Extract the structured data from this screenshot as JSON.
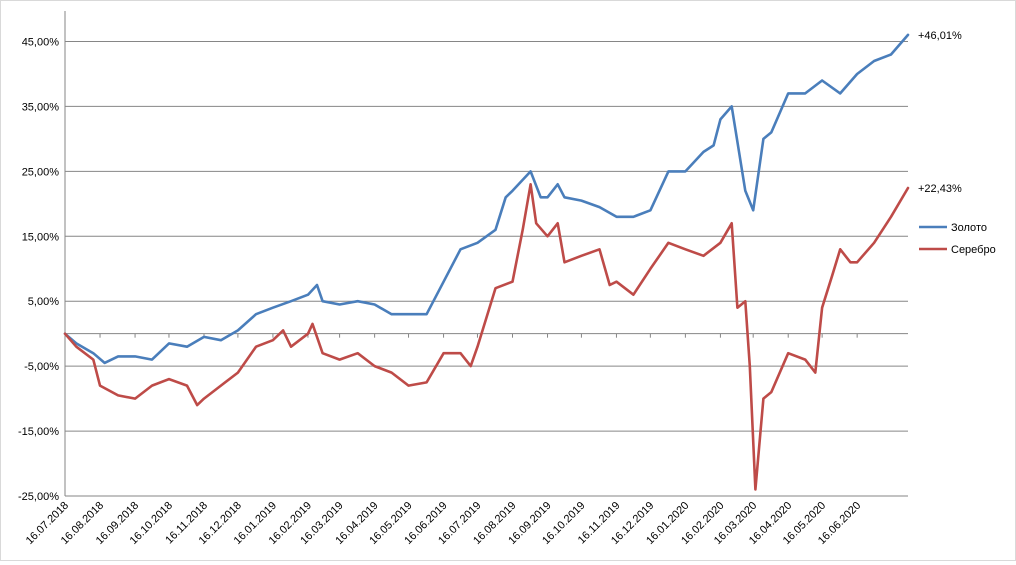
{
  "chart_data": {
    "type": "line",
    "yticks": [
      "45,00%",
      "35,00%",
      "25,00%",
      "15,00%",
      "5,00%",
      "-5,00%",
      "-15,00%",
      "-25,00%"
    ],
    "ylim": [
      -25,
      45
    ],
    "xticks": [
      "16.07.2018",
      "16.08.2018",
      "16.09.2018",
      "16.10.2018",
      "16.11.2018",
      "16.12.2018",
      "16.01.2019",
      "16.02.2019",
      "16.03.2019",
      "16.04.2019",
      "16.05.2019",
      "16.06.2019",
      "16.07.2019",
      "16.08.2019",
      "16.09.2019",
      "16.10.2019",
      "16.11.2019",
      "16.12.2019",
      "16.01.2020",
      "16.02.2020",
      "16.03.2020",
      "16.04.2020",
      "16.05.2020",
      "16.06.2020"
    ],
    "x_range": [
      "16.07.2018",
      "31.07.2020"
    ],
    "grid": "horizontal",
    "legend_position": "right",
    "series": [
      {
        "name": "Золото",
        "color": "#4a7ebb",
        "end_label": "+46,01%",
        "points": [
          [
            "16.07.2018",
            0
          ],
          [
            "26.07.2018",
            -1.5
          ],
          [
            "10.08.2018",
            -3
          ],
          [
            "20.08.2018",
            -4.5
          ],
          [
            "01.09.2018",
            -3.5
          ],
          [
            "16.09.2018",
            -3.5
          ],
          [
            "01.10.2018",
            -4
          ],
          [
            "16.10.2018",
            -1.5
          ],
          [
            "01.11.2018",
            -2
          ],
          [
            "16.11.2018",
            -0.5
          ],
          [
            "01.12.2018",
            -1
          ],
          [
            "16.12.2018",
            0.5
          ],
          [
            "01.01.2019",
            3
          ],
          [
            "16.01.2019",
            4
          ],
          [
            "01.02.2019",
            5
          ],
          [
            "16.02.2019",
            6
          ],
          [
            "24.02.2019",
            7.5
          ],
          [
            "01.03.2019",
            5
          ],
          [
            "16.03.2019",
            4.5
          ],
          [
            "01.04.2019",
            5
          ],
          [
            "16.04.2019",
            4.5
          ],
          [
            "01.05.2019",
            3
          ],
          [
            "16.05.2019",
            3
          ],
          [
            "01.06.2019",
            3
          ],
          [
            "16.06.2019",
            8
          ],
          [
            "01.07.2019",
            13
          ],
          [
            "16.07.2019",
            14
          ],
          [
            "01.08.2019",
            16
          ],
          [
            "10.08.2019",
            21
          ],
          [
            "16.08.2019",
            22
          ],
          [
            "01.09.2019",
            25
          ],
          [
            "10.09.2019",
            21
          ],
          [
            "16.09.2019",
            21
          ],
          [
            "25.09.2019",
            23
          ],
          [
            "01.10.2019",
            21
          ],
          [
            "16.10.2019",
            20.5
          ],
          [
            "01.11.2019",
            19.5
          ],
          [
            "16.11.2019",
            18
          ],
          [
            "01.12.2019",
            18
          ],
          [
            "16.12.2019",
            19
          ],
          [
            "01.01.2020",
            25
          ],
          [
            "16.01.2020",
            25
          ],
          [
            "01.02.2020",
            28
          ],
          [
            "10.02.2020",
            29
          ],
          [
            "16.02.2020",
            33
          ],
          [
            "26.02.2020",
            35
          ],
          [
            "09.03.2020",
            22
          ],
          [
            "16.03.2020",
            19
          ],
          [
            "25.03.2020",
            30
          ],
          [
            "01.04.2020",
            31
          ],
          [
            "16.04.2020",
            37
          ],
          [
            "01.05.2020",
            37
          ],
          [
            "16.05.2020",
            39
          ],
          [
            "01.06.2020",
            37
          ],
          [
            "16.06.2020",
            40
          ],
          [
            "01.07.2020",
            42
          ],
          [
            "16.07.2020",
            43
          ],
          [
            "31.07.2020",
            46.01
          ]
        ]
      },
      {
        "name": "Серебро",
        "color": "#be4b48",
        "end_label": "+22,43%",
        "points": [
          [
            "16.07.2018",
            0
          ],
          [
            "26.07.2018",
            -2
          ],
          [
            "10.08.2018",
            -4
          ],
          [
            "16.08.2018",
            -8
          ],
          [
            "01.09.2018",
            -9.5
          ],
          [
            "16.09.2018",
            -10
          ],
          [
            "01.10.2018",
            -8
          ],
          [
            "16.10.2018",
            -7
          ],
          [
            "01.11.2018",
            -8
          ],
          [
            "10.11.2018",
            -11
          ],
          [
            "16.11.2018",
            -10
          ],
          [
            "01.12.2018",
            -8
          ],
          [
            "16.12.2018",
            -6
          ],
          [
            "01.01.2019",
            -2
          ],
          [
            "16.01.2019",
            -1
          ],
          [
            "25.01.2019",
            0.5
          ],
          [
            "01.02.2019",
            -2
          ],
          [
            "16.02.2019",
            0
          ],
          [
            "20.02.2019",
            1.5
          ],
          [
            "01.03.2019",
            -3
          ],
          [
            "16.03.2019",
            -4
          ],
          [
            "01.04.2019",
            -3
          ],
          [
            "16.04.2019",
            -5
          ],
          [
            "01.05.2019",
            -6
          ],
          [
            "16.05.2019",
            -8
          ],
          [
            "01.06.2019",
            -7.5
          ],
          [
            "16.06.2019",
            -3
          ],
          [
            "01.07.2019",
            -3
          ],
          [
            "10.07.2019",
            -5
          ],
          [
            "16.07.2019",
            -2
          ],
          [
            "01.08.2019",
            7
          ],
          [
            "16.08.2019",
            8
          ],
          [
            "25.08.2019",
            16
          ],
          [
            "01.09.2019",
            23
          ],
          [
            "06.09.2019",
            17
          ],
          [
            "16.09.2019",
            15
          ],
          [
            "25.09.2019",
            17
          ],
          [
            "01.10.2019",
            11
          ],
          [
            "16.10.2019",
            12
          ],
          [
            "01.11.2019",
            13
          ],
          [
            "10.11.2019",
            7.5
          ],
          [
            "16.11.2019",
            8
          ],
          [
            "01.12.2019",
            6
          ],
          [
            "16.12.2019",
            10
          ],
          [
            "01.01.2020",
            14
          ],
          [
            "16.01.2020",
            13
          ],
          [
            "01.02.2020",
            12
          ],
          [
            "16.02.2020",
            14
          ],
          [
            "26.02.2020",
            17
          ],
          [
            "02.03.2020",
            4
          ],
          [
            "09.03.2020",
            5
          ],
          [
            "13.03.2020",
            -5
          ],
          [
            "18.03.2020",
            -24
          ],
          [
            "25.03.2020",
            -10
          ],
          [
            "01.04.2020",
            -9
          ],
          [
            "16.04.2020",
            -3
          ],
          [
            "01.05.2020",
            -4
          ],
          [
            "10.05.2020",
            -6
          ],
          [
            "16.05.2020",
            4
          ],
          [
            "25.05.2020",
            9
          ],
          [
            "01.06.2020",
            13
          ],
          [
            "10.06.2020",
            11
          ],
          [
            "16.06.2020",
            11
          ],
          [
            "01.07.2020",
            14
          ],
          [
            "16.07.2020",
            18
          ],
          [
            "31.07.2020",
            22.43
          ]
        ]
      }
    ]
  }
}
